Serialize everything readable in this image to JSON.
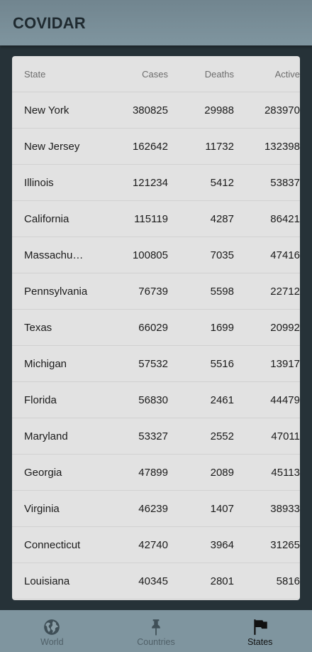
{
  "app": {
    "title": "COVIDAR"
  },
  "table": {
    "headers": {
      "state": "State",
      "cases": "Cases",
      "deaths": "Deaths",
      "active": "Active"
    },
    "rows": [
      {
        "state": "New York",
        "cases": "380825",
        "deaths": "29988",
        "active": "283970"
      },
      {
        "state": "New Jersey",
        "cases": "162642",
        "deaths": "11732",
        "active": "132398"
      },
      {
        "state": "Illinois",
        "cases": "121234",
        "deaths": "5412",
        "active": "53837"
      },
      {
        "state": "California",
        "cases": "115119",
        "deaths": "4287",
        "active": "86421"
      },
      {
        "state": "Massachus…",
        "cases": "100805",
        "deaths": "7035",
        "active": "47416"
      },
      {
        "state": "Pennsylvania",
        "cases": "76739",
        "deaths": "5598",
        "active": "22712"
      },
      {
        "state": "Texas",
        "cases": "66029",
        "deaths": "1699",
        "active": "20992"
      },
      {
        "state": "Michigan",
        "cases": "57532",
        "deaths": "5516",
        "active": "13917"
      },
      {
        "state": "Florida",
        "cases": "56830",
        "deaths": "2461",
        "active": "44479"
      },
      {
        "state": "Maryland",
        "cases": "53327",
        "deaths": "2552",
        "active": "47011"
      },
      {
        "state": "Georgia",
        "cases": "47899",
        "deaths": "2089",
        "active": "45113"
      },
      {
        "state": "Virginia",
        "cases": "46239",
        "deaths": "1407",
        "active": "38933"
      },
      {
        "state": "Connecticut",
        "cases": "42740",
        "deaths": "3964",
        "active": "31265"
      },
      {
        "state": "Louisiana",
        "cases": "40345",
        "deaths": "2801",
        "active": "5816"
      }
    ]
  },
  "nav": {
    "items": [
      {
        "label": "World",
        "icon": "globe-icon",
        "active": false
      },
      {
        "label": "Countries",
        "icon": "pin-icon",
        "active": false
      },
      {
        "label": "States",
        "icon": "flag-icon",
        "active": true
      }
    ]
  },
  "colors": {
    "appbar": "#7f959f",
    "background": "#263238",
    "card": "#e2e2e2",
    "nav_inactive": "#4f5f67",
    "nav_active": "#111111"
  }
}
